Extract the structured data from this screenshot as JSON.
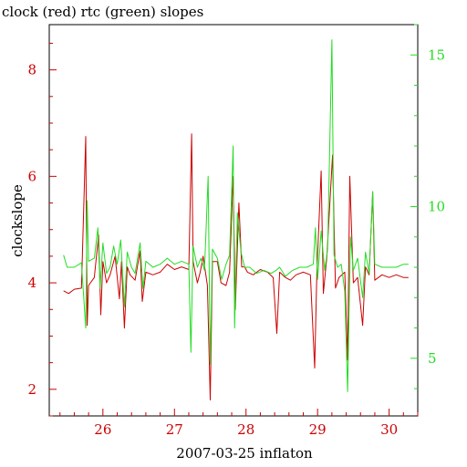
{
  "chart_data": {
    "type": "line",
    "title": "clock (red) rtc (green) slopes",
    "xlabel": "2007-03-25 inflaton",
    "ylabel": "clockslope",
    "xlim": [
      25.25,
      30.4
    ],
    "ylim_left": [
      1.5,
      8.85
    ],
    "ylim_right": [
      3.1,
      16.0
    ],
    "x_ticks": [
      26,
      27,
      28,
      29,
      30
    ],
    "y_ticks_left": [
      2,
      4,
      6,
      8
    ],
    "y_ticks_right": [
      5,
      10,
      15
    ],
    "colors": {
      "clock": "#cc0000",
      "rtc": "#22dd22",
      "axis": "#000000"
    },
    "series": [
      {
        "name": "clock",
        "axis": "left",
        "color": "#cc0000",
        "points": [
          [
            25.45,
            3.85
          ],
          [
            25.52,
            3.8
          ],
          [
            25.6,
            3.88
          ],
          [
            25.7,
            3.9
          ],
          [
            25.76,
            6.75
          ],
          [
            25.78,
            3.2
          ],
          [
            25.8,
            3.95
          ],
          [
            25.88,
            4.1
          ],
          [
            25.94,
            4.9
          ],
          [
            25.97,
            3.4
          ],
          [
            26.0,
            4.4
          ],
          [
            26.05,
            4.0
          ],
          [
            26.1,
            4.15
          ],
          [
            26.17,
            4.5
          ],
          [
            26.23,
            3.7
          ],
          [
            26.26,
            4.4
          ],
          [
            26.3,
            3.15
          ],
          [
            26.34,
            4.3
          ],
          [
            26.38,
            4.15
          ],
          [
            26.45,
            4.05
          ],
          [
            26.52,
            4.6
          ],
          [
            26.55,
            3.65
          ],
          [
            26.6,
            4.2
          ],
          [
            26.7,
            4.15
          ],
          [
            26.8,
            4.2
          ],
          [
            26.9,
            4.35
          ],
          [
            27.0,
            4.25
          ],
          [
            27.1,
            4.3
          ],
          [
            27.2,
            4.25
          ],
          [
            27.24,
            6.8
          ],
          [
            27.26,
            4.4
          ],
          [
            27.32,
            4.0
          ],
          [
            27.36,
            4.2
          ],
          [
            27.4,
            4.5
          ],
          [
            27.46,
            3.95
          ],
          [
            27.5,
            1.8
          ],
          [
            27.53,
            4.4
          ],
          [
            27.6,
            4.4
          ],
          [
            27.65,
            4.0
          ],
          [
            27.72,
            3.95
          ],
          [
            27.77,
            4.2
          ],
          [
            27.82,
            6.0
          ],
          [
            27.85,
            3.5
          ],
          [
            27.9,
            5.5
          ],
          [
            27.94,
            4.3
          ],
          [
            27.98,
            4.3
          ],
          [
            28.02,
            4.2
          ],
          [
            28.1,
            4.15
          ],
          [
            28.2,
            4.25
          ],
          [
            28.3,
            4.2
          ],
          [
            28.38,
            4.1
          ],
          [
            28.43,
            3.05
          ],
          [
            28.47,
            4.2
          ],
          [
            28.55,
            4.1
          ],
          [
            28.62,
            4.05
          ],
          [
            28.7,
            4.15
          ],
          [
            28.8,
            4.2
          ],
          [
            28.9,
            4.15
          ],
          [
            28.96,
            2.4
          ],
          [
            28.99,
            4.2
          ],
          [
            29.05,
            6.1
          ],
          [
            29.08,
            3.8
          ],
          [
            29.13,
            4.5
          ],
          [
            29.18,
            5.7
          ],
          [
            29.21,
            6.4
          ],
          [
            29.25,
            3.9
          ],
          [
            29.3,
            4.1
          ],
          [
            29.38,
            4.2
          ],
          [
            29.42,
            2.55
          ],
          [
            29.45,
            6.0
          ],
          [
            29.5,
            4.0
          ],
          [
            29.56,
            4.1
          ],
          [
            29.63,
            3.2
          ],
          [
            29.67,
            4.3
          ],
          [
            29.72,
            4.15
          ],
          [
            29.77,
            5.7
          ],
          [
            29.8,
            4.05
          ],
          [
            29.9,
            4.15
          ],
          [
            30.0,
            4.1
          ],
          [
            30.1,
            4.15
          ],
          [
            30.2,
            4.1
          ],
          [
            30.27,
            4.1
          ]
        ]
      },
      {
        "name": "rtc",
        "axis": "right",
        "color": "#22dd22",
        "points": [
          [
            25.45,
            8.4
          ],
          [
            25.5,
            8.0
          ],
          [
            25.6,
            8.0
          ],
          [
            25.7,
            8.15
          ],
          [
            25.76,
            6.0
          ],
          [
            25.78,
            10.2
          ],
          [
            25.8,
            8.2
          ],
          [
            25.88,
            8.3
          ],
          [
            25.93,
            9.3
          ],
          [
            25.96,
            7.3
          ],
          [
            26.0,
            8.8
          ],
          [
            26.05,
            7.8
          ],
          [
            26.1,
            8.0
          ],
          [
            26.15,
            8.7
          ],
          [
            26.2,
            8.1
          ],
          [
            26.25,
            8.9
          ],
          [
            26.3,
            6.7
          ],
          [
            26.34,
            8.5
          ],
          [
            26.4,
            8.0
          ],
          [
            26.45,
            7.8
          ],
          [
            26.52,
            8.8
          ],
          [
            26.56,
            7.3
          ],
          [
            26.6,
            8.2
          ],
          [
            26.7,
            8.0
          ],
          [
            26.8,
            8.1
          ],
          [
            26.9,
            8.3
          ],
          [
            27.0,
            8.1
          ],
          [
            27.1,
            8.2
          ],
          [
            27.2,
            8.1
          ],
          [
            27.23,
            5.2
          ],
          [
            27.26,
            8.7
          ],
          [
            27.32,
            8.0
          ],
          [
            27.37,
            8.3
          ],
          [
            27.42,
            7.9
          ],
          [
            27.47,
            11.0
          ],
          [
            27.5,
            4.8
          ],
          [
            27.53,
            8.6
          ],
          [
            27.6,
            8.3
          ],
          [
            27.66,
            7.6
          ],
          [
            27.72,
            8.1
          ],
          [
            27.77,
            8.4
          ],
          [
            27.82,
            12.0
          ],
          [
            27.84,
            6.0
          ],
          [
            27.88,
            9.8
          ],
          [
            27.93,
            8.5
          ],
          [
            27.98,
            8.0
          ],
          [
            28.05,
            8.0
          ],
          [
            28.15,
            7.8
          ],
          [
            28.25,
            7.9
          ],
          [
            28.35,
            7.8
          ],
          [
            28.42,
            7.9
          ],
          [
            28.47,
            8.0
          ],
          [
            28.55,
            7.7
          ],
          [
            28.65,
            7.9
          ],
          [
            28.75,
            8.0
          ],
          [
            28.85,
            8.0
          ],
          [
            28.94,
            8.1
          ],
          [
            28.97,
            9.3
          ],
          [
            29.0,
            7.6
          ],
          [
            29.05,
            9.2
          ],
          [
            29.1,
            7.9
          ],
          [
            29.14,
            8.6
          ],
          [
            29.2,
            15.5
          ],
          [
            29.23,
            8.4
          ],
          [
            29.28,
            8.0
          ],
          [
            29.33,
            8.1
          ],
          [
            29.38,
            7.2
          ],
          [
            29.42,
            3.9
          ],
          [
            29.46,
            9.0
          ],
          [
            29.5,
            7.9
          ],
          [
            29.56,
            8.3
          ],
          [
            29.63,
            7.0
          ],
          [
            29.67,
            8.5
          ],
          [
            29.72,
            7.8
          ],
          [
            29.77,
            10.5
          ],
          [
            29.8,
            8.1
          ],
          [
            29.9,
            8.0
          ],
          [
            30.0,
            8.0
          ],
          [
            30.1,
            8.0
          ],
          [
            30.2,
            8.1
          ],
          [
            30.27,
            8.1
          ]
        ]
      }
    ]
  }
}
